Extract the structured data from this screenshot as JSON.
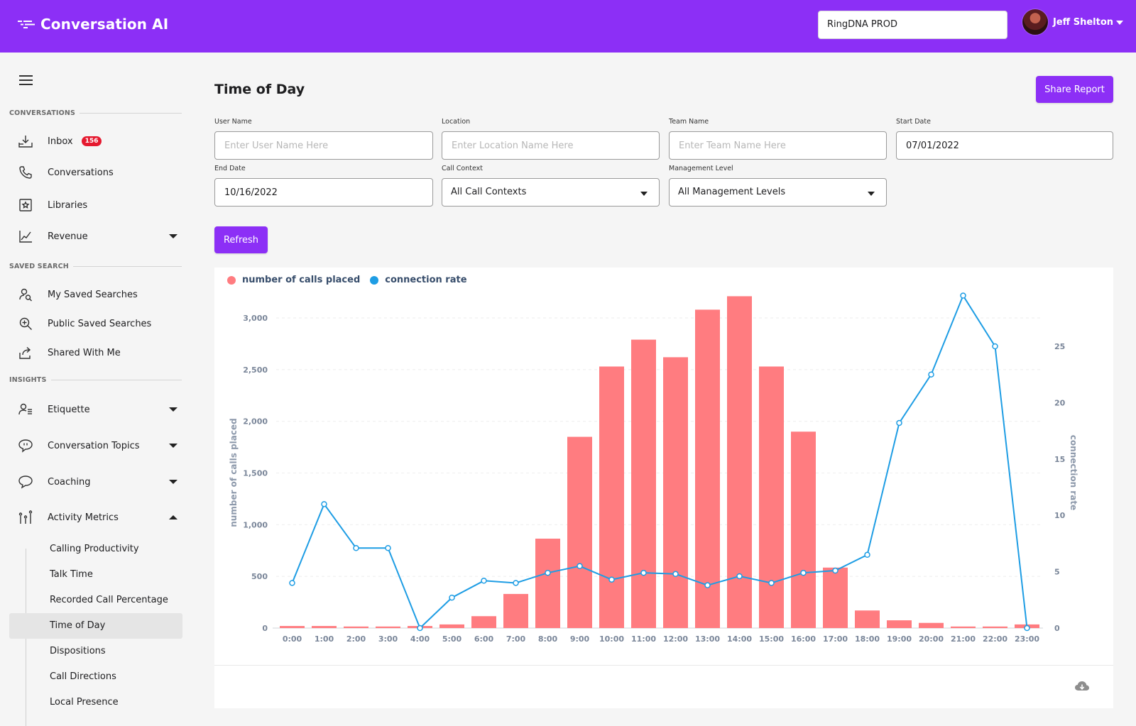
{
  "header": {
    "app_name": "Conversation AI",
    "account": "RingDNA PROD",
    "user_name": "Jeff Shelton"
  },
  "sidebar": {
    "sections": {
      "conversations": "CONVERSATIONS",
      "saved_search": "SAVED SEARCH",
      "insights": "INSIGHTS"
    },
    "inbox": {
      "label": "Inbox",
      "badge": "156"
    },
    "conversations": "Conversations",
    "libraries": "Libraries",
    "revenue": "Revenue",
    "my_saved_searches": "My Saved Searches",
    "public_saved_searches": "Public Saved Searches",
    "shared_with_me": "Shared With Me",
    "etiquette": "Etiquette",
    "conversation_topics": "Conversation Topics",
    "coaching": "Coaching",
    "activity_metrics": "Activity Metrics",
    "activity_sub": [
      "Calling Productivity",
      "Talk Time",
      "Recorded Call Percentage",
      "Time of Day",
      "Dispositions",
      "Call Directions",
      "Local Presence"
    ]
  },
  "main": {
    "title": "Time of Day",
    "share_label": "Share Report",
    "refresh_label": "Refresh",
    "filters": {
      "user_name": {
        "label": "User Name",
        "placeholder": "Enter User Name Here",
        "value": ""
      },
      "location": {
        "label": "Location",
        "placeholder": "Enter Location Name Here",
        "value": ""
      },
      "team_name": {
        "label": "Team Name",
        "placeholder": "Enter Team Name Here",
        "value": ""
      },
      "start_date": {
        "label": "Start Date",
        "value": "07/01/2022"
      },
      "end_date": {
        "label": "End Date",
        "value": "10/16/2022"
      },
      "call_context": {
        "label": "Call Context",
        "value": "All Call Contexts"
      },
      "management_level": {
        "label": "Management Level",
        "value": "All Management Levels"
      }
    }
  },
  "chart_data": {
    "type": "bar",
    "categories": [
      "0:00",
      "1:00",
      "2:00",
      "3:00",
      "4:00",
      "5:00",
      "6:00",
      "7:00",
      "8:00",
      "9:00",
      "10:00",
      "11:00",
      "12:00",
      "13:00",
      "14:00",
      "15:00",
      "16:00",
      "17:00",
      "18:00",
      "19:00",
      "20:00",
      "21:00",
      "22:00",
      "23:00"
    ],
    "series": [
      {
        "name": "number of calls placed",
        "type": "bar",
        "axis": "left",
        "color": "#ff7c80",
        "values": [
          20,
          20,
          15,
          15,
          20,
          35,
          115,
          330,
          865,
          1850,
          2530,
          2790,
          2620,
          3080,
          3210,
          2530,
          1900,
          585,
          170,
          75,
          50,
          15,
          15,
          35
        ]
      },
      {
        "name": "connection rate",
        "type": "line",
        "axis": "right",
        "color": "#1e9de4",
        "values": [
          4.0,
          11.0,
          7.1,
          7.1,
          0,
          2.7,
          4.2,
          4.0,
          4.9,
          5.5,
          4.3,
          4.9,
          4.8,
          3.8,
          4.6,
          4.0,
          4.9,
          5.1,
          6.5,
          18.2,
          22.5,
          29.5,
          25.0,
          0
        ]
      }
    ],
    "ylabel": "number of calls placed",
    "y2label": "connection rate",
    "ylim": [
      0,
      3000
    ],
    "y2lim": [
      0,
      25
    ],
    "yticks": [
      "0",
      "500",
      "1,000",
      "1,500",
      "2,000",
      "2,500",
      "3,000"
    ],
    "y2ticks": [
      "0",
      "5",
      "10",
      "15",
      "20",
      "25"
    ],
    "legend": "top-left",
    "grid": true
  }
}
